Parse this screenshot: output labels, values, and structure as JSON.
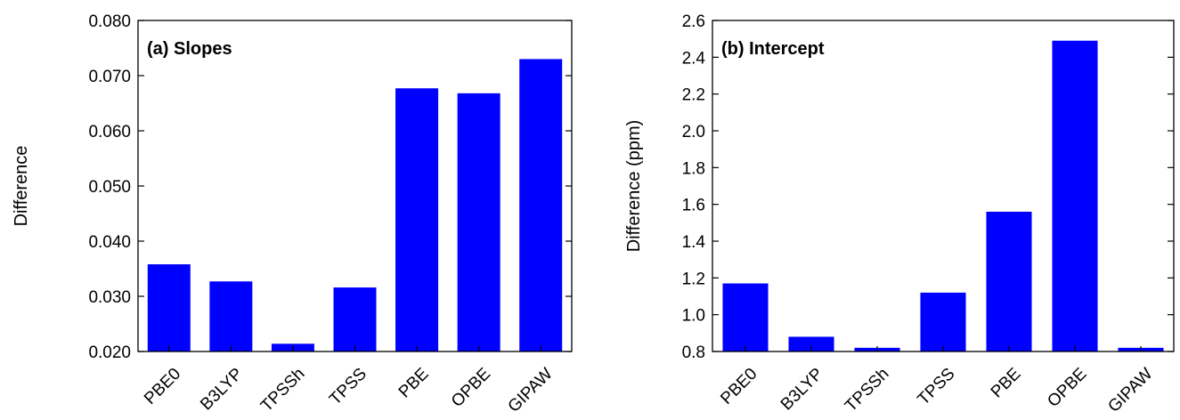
{
  "chart_data": [
    {
      "type": "bar",
      "title": "(a) Slopes",
      "ylabel": "Difference",
      "xlabel": "",
      "categories": [
        "PBE0",
        "B3LYP",
        "TPSSh",
        "TPSS",
        "PBE",
        "OPBE",
        "GIPAW"
      ],
      "values": [
        0.0358,
        0.0327,
        0.0214,
        0.0316,
        0.0677,
        0.0668,
        0.073
      ],
      "ylim": [
        0.02,
        0.08
      ],
      "yticks": [
        "0.020",
        "0.030",
        "0.040",
        "0.050",
        "0.060",
        "0.070",
        "0.080"
      ],
      "grid": false,
      "bar_color": "#0000ff"
    },
    {
      "type": "bar",
      "title": "(b) Intercept",
      "ylabel": "Difference (ppm)",
      "xlabel": "",
      "categories": [
        "PBE0",
        "B3LYP",
        "TPSSh",
        "TPSS",
        "PBE",
        "OPBE",
        "GIPAW"
      ],
      "values": [
        1.17,
        0.88,
        0.82,
        1.12,
        1.56,
        2.49,
        0.82
      ],
      "ylim": [
        0.8,
        2.6
      ],
      "yticks": [
        "0.8",
        "1.0",
        "1.2",
        "1.4",
        "1.6",
        "1.8",
        "2.0",
        "2.2",
        "2.4",
        "2.6"
      ],
      "grid": false,
      "bar_color": "#0000ff"
    }
  ]
}
